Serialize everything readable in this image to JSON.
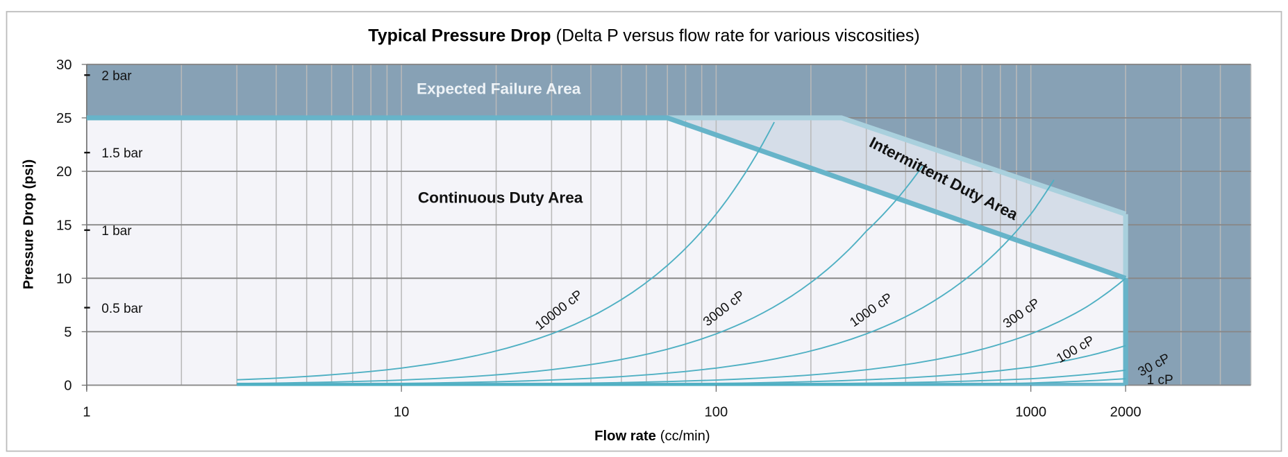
{
  "chart_data": {
    "type": "line",
    "title_bold": "Typical Pressure Drop",
    "title_rest": "(Delta P versus flow rate for various viscosities)",
    "xlabel_bold": "Flow rate",
    "xlabel_rest": "(cc/min)",
    "ylabel": "Pressure Drop (psi)",
    "x_scale": "log",
    "xlim": [
      1,
      5000
    ],
    "ylim": [
      0,
      30
    ],
    "grid": true,
    "x_ticks": [
      1,
      10,
      100,
      1000,
      2000
    ],
    "x_tick_labels": [
      "1",
      "10",
      "100",
      "1000",
      "2000"
    ],
    "y_ticks": [
      0,
      5,
      10,
      15,
      20,
      25,
      30
    ],
    "y_tick_labels": [
      "0",
      "5",
      "10",
      "15",
      "20",
      "25",
      "30"
    ],
    "secondary_y_ticks": [
      {
        "psi": 29,
        "label": "2 bar"
      },
      {
        "psi": 21.75,
        "label": "1.5 bar"
      },
      {
        "psi": 14.5,
        "label": "1 bar"
      },
      {
        "psi": 7.25,
        "label": "0.5 bar"
      }
    ],
    "regions": {
      "failure": {
        "label": "Expected Failure Area",
        "color": "#87a1b5"
      },
      "continuous": {
        "label": "Continuous Duty Area",
        "color": "#f4f4f9",
        "boundary": [
          [
            1,
            25
          ],
          [
            70,
            25
          ],
          [
            2000,
            10
          ]
        ]
      },
      "intermittent": {
        "label": "Intermittent Duty Area",
        "color": "#d5dde8",
        "boundary": [
          [
            70,
            25
          ],
          [
            250,
            25
          ],
          [
            2000,
            16
          ],
          [
            2000,
            10
          ]
        ]
      }
    },
    "colors": {
      "boundary_line": "#67b4c9",
      "intermittent_line": "#a9d0dd",
      "curve": "#4fb0c3",
      "grid": "#b9b9b9",
      "major_grid": "#888888"
    },
    "series": [
      {
        "name": "10000 cP",
        "points": [
          [
            3,
            0.5
          ],
          [
            10,
            1.6
          ],
          [
            30,
            4.8
          ],
          [
            70,
            11.2
          ],
          [
            100,
            16
          ],
          [
            153,
            24.6
          ]
        ]
      },
      {
        "name": "3000 cP",
        "points": [
          [
            3,
            0.15
          ],
          [
            10,
            0.48
          ],
          [
            30,
            1.45
          ],
          [
            100,
            4.8
          ],
          [
            200,
            9.6
          ],
          [
            300,
            14.4
          ],
          [
            453,
            20.5
          ]
        ]
      },
      {
        "name": "1000 cP",
        "points": [
          [
            3,
            0.05
          ],
          [
            10,
            0.16
          ],
          [
            100,
            1.6
          ],
          [
            300,
            4.8
          ],
          [
            600,
            9.6
          ],
          [
            1000,
            16
          ],
          [
            1184,
            19.2
          ]
        ]
      },
      {
        "name": "300 cP",
        "points": [
          [
            3,
            0.02
          ],
          [
            100,
            0.48
          ],
          [
            500,
            2.4
          ],
          [
            1000,
            4.8
          ],
          [
            1500,
            7.3
          ],
          [
            2000,
            10
          ]
        ]
      },
      {
        "name": "100 cP",
        "points": [
          [
            3,
            0.01
          ],
          [
            100,
            0.16
          ],
          [
            1000,
            1.7
          ],
          [
            1500,
            2.7
          ],
          [
            2000,
            3.7
          ]
        ]
      },
      {
        "name": "30 cP",
        "points": [
          [
            3,
            0.0
          ],
          [
            100,
            0.06
          ],
          [
            1000,
            0.6
          ],
          [
            2000,
            1.4
          ]
        ]
      },
      {
        "name": "1 cP",
        "points": [
          [
            3,
            0.0
          ],
          [
            500,
            0.05
          ],
          [
            1000,
            0.2
          ],
          [
            2000,
            0.6
          ]
        ]
      }
    ]
  }
}
